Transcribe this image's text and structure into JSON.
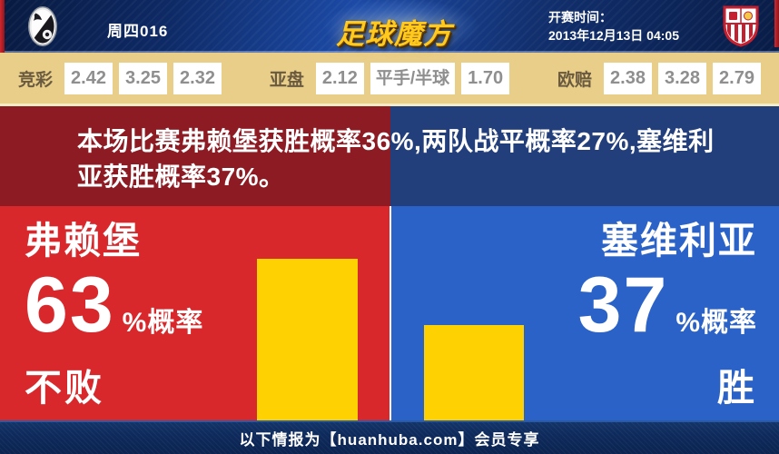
{
  "header": {
    "match_code": "周四016",
    "site_logo": "足球魔方",
    "kickoff_label": "开赛时间：",
    "kickoff_time": "2013年12月13日 04:05"
  },
  "odds_bar": {
    "groups": [
      {
        "label": "竞彩",
        "values": [
          "2.42",
          "3.25",
          "2.32"
        ]
      },
      {
        "label": "亚盘",
        "values": [
          "2.12",
          "平手/半球",
          "1.70"
        ]
      },
      {
        "label": "欧赔",
        "values": [
          "2.38",
          "3.28",
          "2.79"
        ]
      }
    ]
  },
  "banner": {
    "lines": [
      "本场比赛弗赖堡获胜概率36%,两队战平概率27%,塞维利",
      "亚获胜概率37%。"
    ]
  },
  "panels": {
    "home": {
      "team": "弗赖堡",
      "value": "63",
      "unit": "%概率",
      "outcome": "不败"
    },
    "away": {
      "team": "塞维利亚",
      "value": "37",
      "unit": "%概率",
      "outcome": "胜"
    }
  },
  "footer": {
    "text": "以下情报为【huanhuba.com】会员专享"
  },
  "colors": {
    "home_panel": "#d8282b",
    "away_panel": "#2a62c8",
    "banner_home": "#8d1b23",
    "banner_away": "#223f7c",
    "probability_bar": "#fed202",
    "odds_bar_bg": "#e8ce89",
    "footer_bg": "#0e2a5c",
    "logo_gold": "#ffc91e"
  },
  "chart_data": {
    "type": "bar",
    "categories": [
      "弗赖堡不败",
      "塞维利亚胜"
    ],
    "values": [
      63,
      37
    ],
    "unit": "%",
    "probabilities": {
      "home_win_pct": 36,
      "draw_pct": 27,
      "away_win_pct": 37
    }
  }
}
